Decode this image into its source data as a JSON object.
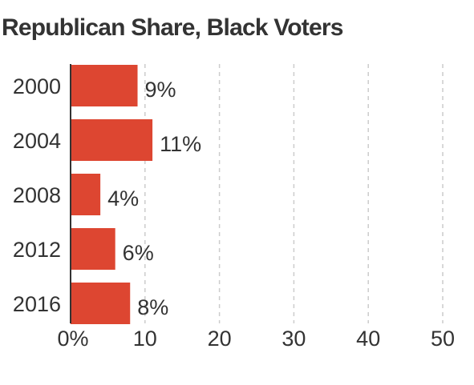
{
  "chart_data": {
    "type": "bar",
    "orientation": "horizontal",
    "title": "Republican Share, Black Voters",
    "categories": [
      "2000",
      "2004",
      "2008",
      "2012",
      "2016"
    ],
    "values": [
      9,
      11,
      4,
      6,
      8
    ],
    "value_labels": [
      "9%",
      "11%",
      "4%",
      "6%",
      "8%"
    ],
    "xlim": [
      0,
      50
    ],
    "x_ticks": [
      0,
      10,
      20,
      30,
      40,
      50
    ],
    "x_tick_labels": [
      "0%",
      "10",
      "20",
      "30",
      "40",
      "50"
    ],
    "grid": "vertical-dashed",
    "legend": "none",
    "bar_color": "#dd4631",
    "grid_color": "#cccccc",
    "axis_color": "#333333"
  }
}
